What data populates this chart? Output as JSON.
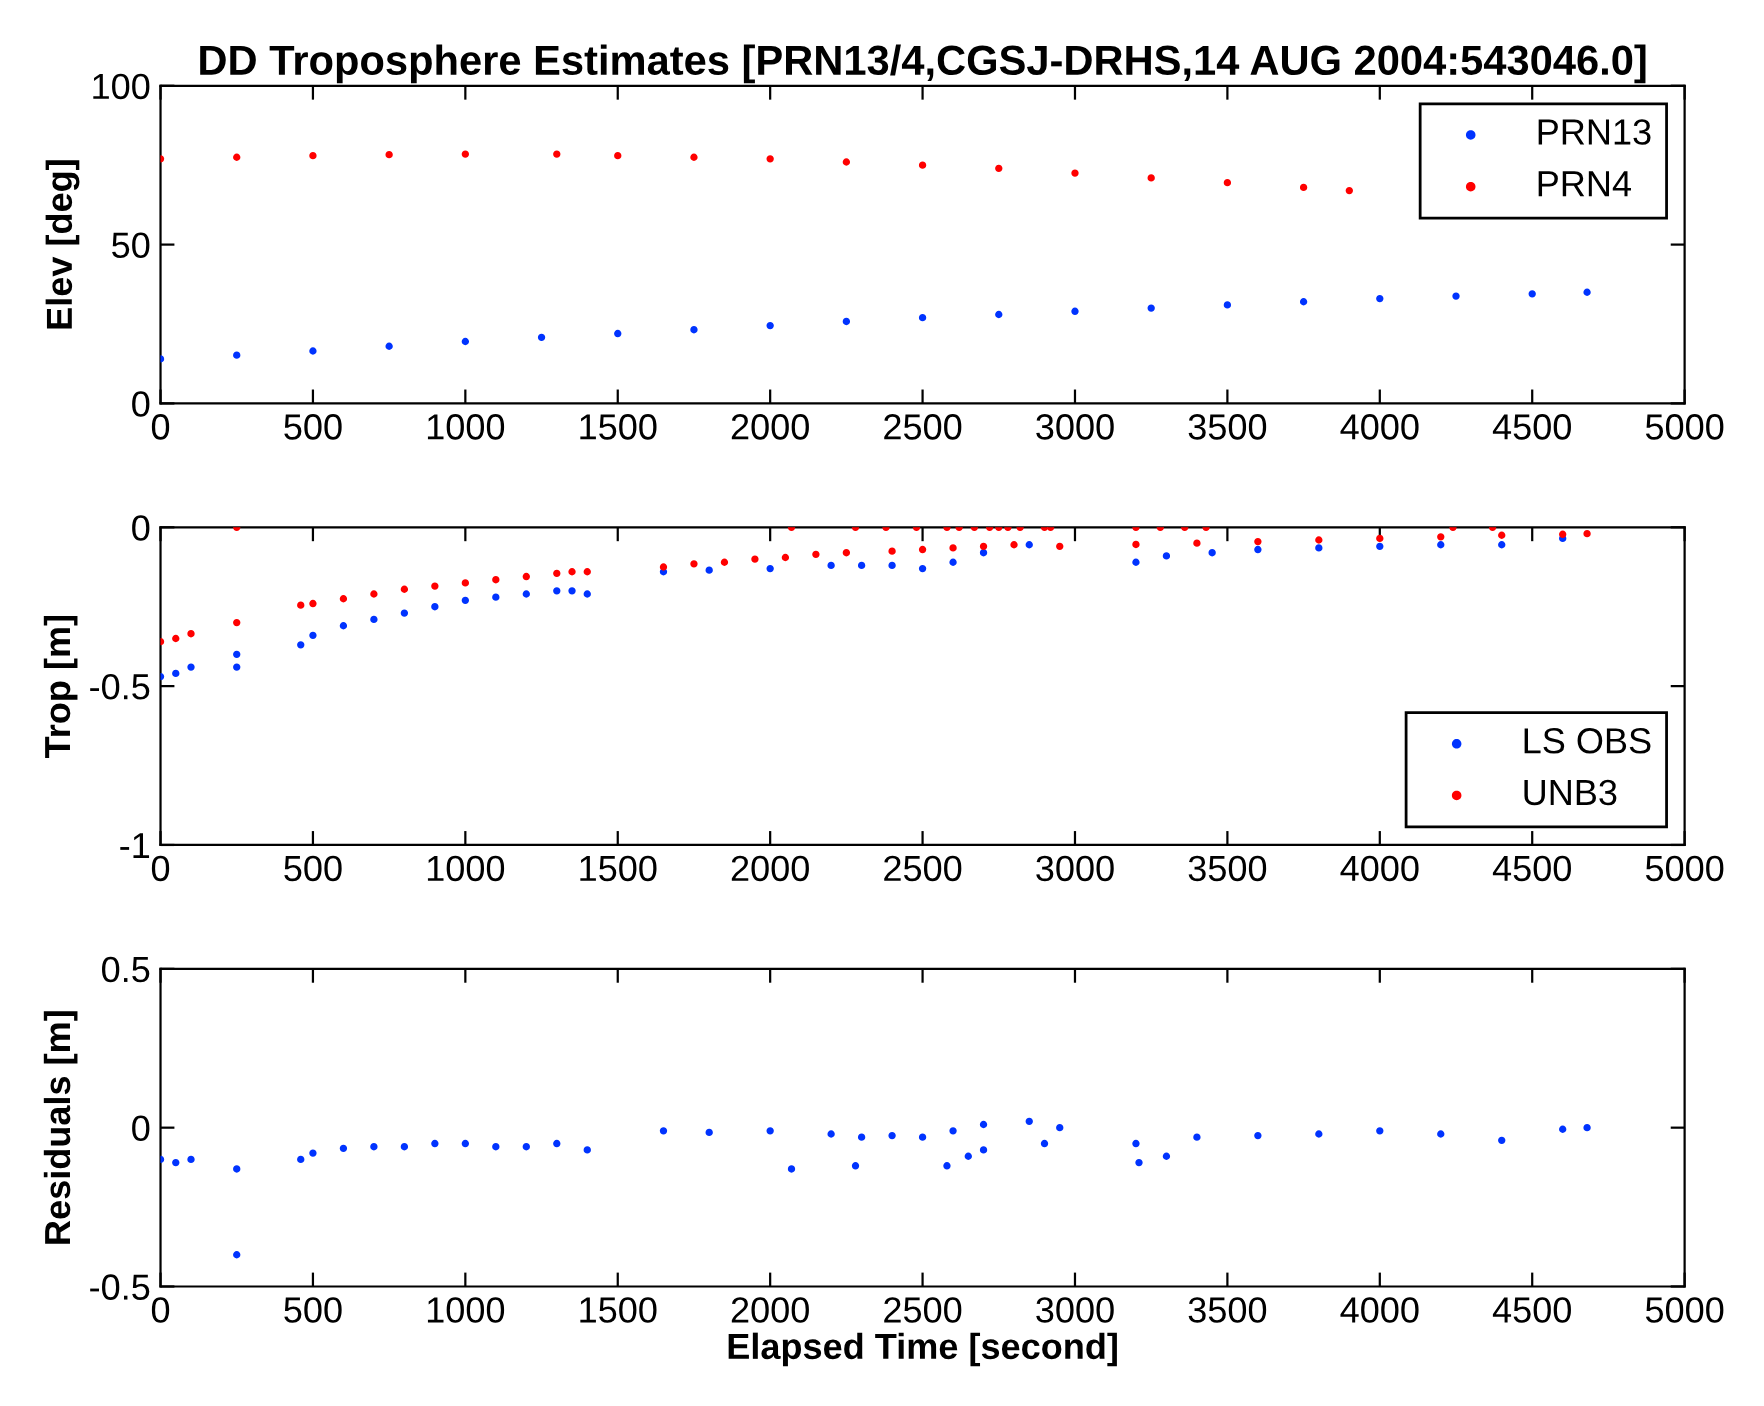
{
  "chart_data": [
    {
      "type": "scatter",
      "title": "DD Troposphere Estimates [PRN13/4,CGSJ-DRHS,14 AUG 2004:543046.0]",
      "ylabel": "Elev [deg]",
      "xlim": [
        0,
        5000
      ],
      "xticks": [
        0,
        500,
        1000,
        1500,
        2000,
        2500,
        3000,
        3500,
        4000,
        4500,
        5000
      ],
      "ylim": [
        0,
        100
      ],
      "yticks": [
        0,
        50,
        100
      ],
      "grid": false,
      "legend": "top right",
      "marker": "circle",
      "series": [
        {
          "name": "PRN13",
          "color": "#0033ff",
          "x": [
            0,
            250,
            500,
            750,
            1000,
            1250,
            1500,
            1750,
            2000,
            2250,
            2500,
            2750,
            3000,
            3250,
            3500,
            3750,
            4000,
            4250,
            4500,
            4680
          ],
          "values": [
            14,
            15.2,
            16.5,
            18,
            19.5,
            20.8,
            22,
            23.2,
            24.5,
            25.8,
            27,
            28,
            29,
            30,
            31,
            32,
            33,
            33.8,
            34.5,
            35
          ]
        },
        {
          "name": "PRN4",
          "color": "#ff0000",
          "x": [
            0,
            250,
            500,
            750,
            1000,
            1300,
            1500,
            1750,
            2000,
            2250,
            2500,
            2750,
            3000,
            3250,
            3500,
            3750,
            3900
          ],
          "values": [
            77,
            77.5,
            78,
            78.3,
            78.5,
            78.5,
            78,
            77.5,
            77,
            76,
            75,
            74,
            72.5,
            71,
            69.5,
            68,
            67
          ]
        }
      ]
    },
    {
      "type": "scatter",
      "ylabel": "Trop [m]",
      "xlim": [
        0,
        5000
      ],
      "xticks": [
        0,
        500,
        1000,
        1500,
        2000,
        2500,
        3000,
        3500,
        4000,
        4500,
        5000
      ],
      "ylim": [
        -1,
        0
      ],
      "yticks": [
        -1,
        -0.5,
        0
      ],
      "grid": false,
      "legend": "bottom right",
      "marker": "circle",
      "series": [
        {
          "name": "LS OBS",
          "color": "#0033ff",
          "x": [
            0,
            50,
            100,
            250,
            250,
            460,
            500,
            600,
            700,
            800,
            900,
            1000,
            1100,
            1200,
            1300,
            1350,
            1400,
            1650,
            1800,
            2000,
            2200,
            2300,
            2400,
            2500,
            2600,
            2700,
            2850,
            3200,
            3300,
            3450,
            3600,
            3800,
            4000,
            4200,
            4400,
            4600
          ],
          "values": [
            -0.47,
            -0.46,
            -0.44,
            -0.4,
            -0.44,
            -0.37,
            -0.34,
            -0.31,
            -0.29,
            -0.27,
            -0.25,
            -0.23,
            -0.22,
            -0.21,
            -0.2,
            -0.2,
            -0.21,
            -0.14,
            -0.135,
            -0.13,
            -0.12,
            -0.12,
            -0.12,
            -0.13,
            -0.11,
            -0.08,
            -0.055,
            -0.11,
            -0.09,
            -0.08,
            -0.07,
            -0.065,
            -0.06,
            -0.055,
            -0.055,
            -0.035
          ]
        },
        {
          "name": "UNB3",
          "color": "#ff0000",
          "x": [
            0,
            50,
            100,
            250,
            250,
            460,
            500,
            600,
            700,
            800,
            900,
            1000,
            1100,
            1200,
            1300,
            1350,
            1400,
            1650,
            1750,
            1850,
            1950,
            2050,
            2070,
            2150,
            2250,
            2280,
            2380,
            2400,
            2480,
            2500,
            2580,
            2600,
            2620,
            2670,
            2700,
            2720,
            2750,
            2780,
            2800,
            2820,
            2900,
            2920,
            2950,
            3200,
            3200,
            3280,
            3360,
            3400,
            3430,
            3600,
            3800,
            4000,
            4200,
            4240,
            4370,
            4400,
            4600,
            4680
          ],
          "values": [
            -0.36,
            -0.35,
            -0.335,
            0,
            -0.3,
            -0.245,
            -0.24,
            -0.225,
            -0.21,
            -0.195,
            -0.185,
            -0.175,
            -0.165,
            -0.155,
            -0.145,
            -0.14,
            -0.14,
            -0.125,
            -0.115,
            -0.11,
            -0.1,
            -0.095,
            0,
            -0.085,
            -0.08,
            0,
            0,
            -0.075,
            0,
            -0.07,
            0,
            -0.065,
            0,
            0,
            -0.06,
            0,
            0,
            0,
            -0.055,
            0,
            0,
            0,
            -0.06,
            -0.054,
            0,
            0,
            0,
            -0.05,
            0,
            -0.045,
            -0.04,
            -0.035,
            -0.03,
            0,
            0,
            -0.025,
            -0.022,
            -0.02
          ]
        }
      ]
    },
    {
      "type": "scatter",
      "ylabel": "Residuals [m]",
      "xlabel": "Elapsed Time [second]",
      "xlim": [
        0,
        5000
      ],
      "xticks": [
        0,
        500,
        1000,
        1500,
        2000,
        2500,
        3000,
        3500,
        4000,
        4500,
        5000
      ],
      "ylim": [
        -0.5,
        0.5
      ],
      "yticks": [
        -0.5,
        0,
        0.5
      ],
      "grid": false,
      "marker": "circle",
      "series": [
        {
          "color": "#0033ff",
          "x": [
            0,
            50,
            100,
            250,
            250,
            460,
            500,
            600,
            700,
            800,
            900,
            1000,
            1100,
            1200,
            1300,
            1400,
            1650,
            1800,
            2000,
            2070,
            2200,
            2280,
            2300,
            2400,
            2500,
            2580,
            2600,
            2650,
            2700,
            2700,
            2850,
            2900,
            2950,
            3200,
            3210,
            3300,
            3400,
            3600,
            3800,
            4000,
            4200,
            4400,
            4600,
            4680
          ],
          "values": [
            -0.1,
            -0.11,
            -0.1,
            -0.13,
            -0.4,
            -0.1,
            -0.08,
            -0.065,
            -0.06,
            -0.06,
            -0.05,
            -0.05,
            -0.06,
            -0.06,
            -0.05,
            -0.07,
            -0.01,
            -0.015,
            -0.01,
            -0.13,
            -0.02,
            -0.12,
            -0.03,
            -0.025,
            -0.03,
            -0.12,
            -0.01,
            -0.09,
            0.01,
            -0.07,
            0.02,
            -0.05,
            0.0,
            -0.05,
            -0.11,
            -0.09,
            -0.03,
            -0.025,
            -0.02,
            -0.01,
            -0.02,
            -0.04,
            -0.005,
            0.0
          ]
        }
      ]
    }
  ]
}
